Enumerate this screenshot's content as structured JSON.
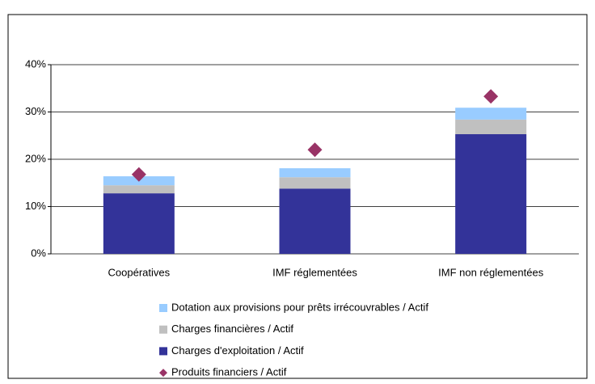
{
  "chart_data": {
    "type": "bar",
    "stacked": true,
    "categories": [
      "Coopératives",
      "IMF réglementées",
      "IMF non réglementées"
    ],
    "series": [
      {
        "name": "Charges d'exploitation / Actif",
        "color": "#333399",
        "type": "bar",
        "values": [
          12.8,
          13.8,
          25.3
        ]
      },
      {
        "name": "Charges financières / Actif",
        "color": "#c0c0c0",
        "type": "bar",
        "values": [
          1.7,
          2.4,
          3.1
        ]
      },
      {
        "name": "Dotation aux provisions pour prêts irrécouvrables / Actif",
        "color": "#99ccff",
        "type": "bar",
        "values": [
          1.9,
          1.9,
          2.5
        ]
      },
      {
        "name": "Produits financiers / Actif",
        "color": "#993366",
        "type": "marker",
        "values": [
          16.8,
          22.0,
          33.3
        ]
      }
    ],
    "legend_order": [
      2,
      1,
      0,
      3
    ],
    "ylim": [
      0,
      40
    ],
    "yticks": [
      {
        "value": 0,
        "label": "0%"
      },
      {
        "value": 10,
        "label": "10%"
      },
      {
        "value": 20,
        "label": "20%"
      },
      {
        "value": 30,
        "label": "30%"
      },
      {
        "value": 40,
        "label": "40%"
      }
    ],
    "grid": true
  }
}
